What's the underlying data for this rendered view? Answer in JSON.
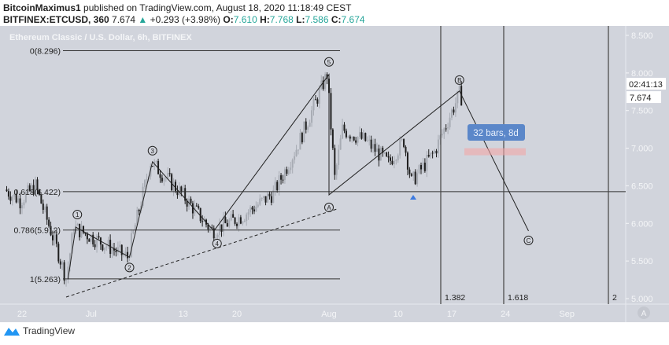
{
  "header": {
    "author": "BitcoinMaximus1",
    "published": "published on TradingView.com, August 18, 2020 11:18:49 CEST",
    "symbol": "BITFINEX:ETCUSD, 360",
    "last": "7.674",
    "change": "+0.293 (+3.98%)",
    "o_label": "O:",
    "o": "7.610",
    "h_label": "H:",
    "h": "7.768",
    "l_label": "L:",
    "l": "7.586",
    "c_label": "C:",
    "c": "7.674",
    "up_color": "#26a69a"
  },
  "chart_data": {
    "type": "candlestick",
    "title": "Ethereum Classic / U.S. Dollar, 6h, BITFINEX",
    "ylim": [
      5.0,
      8.5
    ],
    "y_ticks": [
      "8.500",
      "8.000",
      "7.500",
      "7.000",
      "6.500",
      "6.000",
      "5.500",
      "5.000"
    ],
    "x_ticks": [
      {
        "label": "22",
        "date": "2020-06-22"
      },
      {
        "label": "Jul",
        "date": "2020-07-01"
      },
      {
        "label": "13",
        "date": "2020-07-13"
      },
      {
        "label": "20",
        "date": "2020-07-20"
      },
      {
        "label": "Aug",
        "date": "2020-08-01"
      },
      {
        "label": "10",
        "date": "2020-08-10"
      },
      {
        "label": "17",
        "date": "2020-08-17"
      },
      {
        "label": "24",
        "date": "2020-08-24"
      },
      {
        "label": "Sep",
        "date": "2020-09-01"
      }
    ],
    "price_path": [
      [
        "2020-06-20",
        6.45
      ],
      [
        "2020-06-22",
        6.3
      ],
      [
        "2020-06-24",
        6.5
      ],
      [
        "2020-06-25",
        6.2
      ],
      [
        "2020-06-27",
        5.6
      ],
      [
        "2020-06-28",
        5.263
      ],
      [
        "2020-06-29",
        5.95
      ],
      [
        "2020-07-06",
        5.55
      ],
      [
        "2020-07-09",
        6.82
      ],
      [
        "2020-07-13",
        6.4
      ],
      [
        "2020-07-17",
        5.9
      ],
      [
        "2020-07-21",
        6.1
      ],
      [
        "2020-07-25",
        6.4
      ],
      [
        "2020-07-28",
        7.0
      ],
      [
        "2020-08-01",
        7.98
      ],
      [
        "2020-08-02",
        6.6
      ],
      [
        "2020-08-03",
        7.25
      ],
      [
        "2020-08-06",
        7.1
      ],
      [
        "2020-08-09",
        6.8
      ],
      [
        "2020-08-11",
        7.1
      ],
      [
        "2020-08-12",
        6.55
      ],
      [
        "2020-08-15",
        6.95
      ],
      [
        "2020-08-18",
        7.76
      ],
      [
        "2020-08-18",
        7.674
      ]
    ],
    "last_price": "7.674",
    "countdown": "02:41:13",
    "fib_levels": [
      {
        "label": "0(8.296)",
        "value": 8.296
      },
      {
        "label": "0.618(6.422)",
        "value": 6.422
      },
      {
        "label": "0.786(5.912)",
        "value": 5.912
      },
      {
        "label": "1(5.263)",
        "value": 5.263
      }
    ],
    "waves": [
      {
        "label": "1",
        "date": "2020-06-29",
        "price": 5.95
      },
      {
        "label": "2",
        "date": "2020-07-06",
        "price": 5.55
      },
      {
        "label": "3",
        "date": "2020-07-09",
        "price": 6.82
      },
      {
        "label": "4",
        "date": "2020-07-17",
        "price": 5.9
      },
      {
        "label": "5",
        "date": "2020-08-01",
        "price": 7.98
      },
      {
        "label": "A",
        "date": "2020-08-01",
        "price": 6.38
      },
      {
        "label": "B",
        "date": "2020-08-18",
        "price": 7.76
      },
      {
        "label": "C",
        "date": "2020-08-27",
        "price": 5.9
      }
    ],
    "time_fib": [
      "1.382",
      "1.618",
      "2"
    ],
    "measure_label": "32 bars, 8d",
    "scale_button": "A",
    "colors": {
      "background": "#d1d4dc",
      "up": "#a7abb3",
      "down": "#1e1e1e",
      "measure": "#5b87c9",
      "target_zone": "#f2a6a6",
      "marker": "#3c7ae0"
    }
  },
  "footer": {
    "brand": "TradingView"
  }
}
